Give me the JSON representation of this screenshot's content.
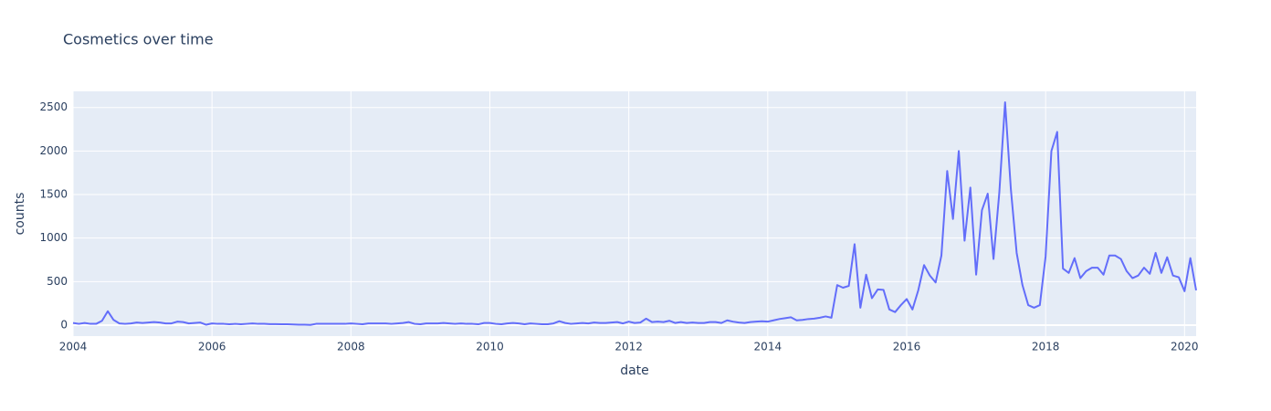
{
  "chart_data": {
    "type": "line",
    "title": "Cosmetics over time",
    "xlabel": "date",
    "ylabel": "counts",
    "x": [
      "2004-01",
      "2004-02",
      "2004-03",
      "2004-04",
      "2004-05",
      "2004-06",
      "2004-07",
      "2004-08",
      "2004-09",
      "2004-10",
      "2004-11",
      "2004-12",
      "2005-01",
      "2005-02",
      "2005-03",
      "2005-04",
      "2005-05",
      "2005-06",
      "2005-07",
      "2005-08",
      "2005-09",
      "2005-10",
      "2005-11",
      "2005-12",
      "2006-01",
      "2006-02",
      "2006-03",
      "2006-04",
      "2006-05",
      "2006-06",
      "2006-07",
      "2006-08",
      "2006-09",
      "2006-10",
      "2006-11",
      "2006-12",
      "2007-01",
      "2007-02",
      "2007-03",
      "2007-04",
      "2007-05",
      "2007-06",
      "2007-07",
      "2007-08",
      "2007-09",
      "2007-10",
      "2007-11",
      "2007-12",
      "2008-01",
      "2008-02",
      "2008-03",
      "2008-04",
      "2008-05",
      "2008-06",
      "2008-07",
      "2008-08",
      "2008-09",
      "2008-10",
      "2008-11",
      "2008-12",
      "2009-01",
      "2009-02",
      "2009-03",
      "2009-04",
      "2009-05",
      "2009-06",
      "2009-07",
      "2009-08",
      "2009-09",
      "2009-10",
      "2009-11",
      "2009-12",
      "2010-01",
      "2010-02",
      "2010-03",
      "2010-04",
      "2010-05",
      "2010-06",
      "2010-07",
      "2010-08",
      "2010-09",
      "2010-10",
      "2010-11",
      "2010-12",
      "2011-01",
      "2011-02",
      "2011-03",
      "2011-04",
      "2011-05",
      "2011-06",
      "2011-07",
      "2011-08",
      "2011-09",
      "2011-10",
      "2011-11",
      "2011-12",
      "2012-01",
      "2012-02",
      "2012-03",
      "2012-04",
      "2012-05",
      "2012-06",
      "2012-07",
      "2012-08",
      "2012-09",
      "2012-10",
      "2012-11",
      "2012-12",
      "2013-01",
      "2013-02",
      "2013-03",
      "2013-04",
      "2013-05",
      "2013-06",
      "2013-07",
      "2013-08",
      "2013-09",
      "2013-10",
      "2013-11",
      "2013-12",
      "2014-01",
      "2014-02",
      "2014-03",
      "2014-04",
      "2014-05",
      "2014-06",
      "2014-07",
      "2014-08",
      "2014-09",
      "2014-10",
      "2014-11",
      "2014-12",
      "2015-01",
      "2015-02",
      "2015-03",
      "2015-04",
      "2015-05",
      "2015-06",
      "2015-07",
      "2015-08",
      "2015-09",
      "2015-10",
      "2015-11",
      "2015-12",
      "2016-01",
      "2016-02",
      "2016-03",
      "2016-04",
      "2016-05",
      "2016-06",
      "2016-07",
      "2016-08",
      "2016-09",
      "2016-10",
      "2016-11",
      "2016-12",
      "2017-01",
      "2017-02",
      "2017-03",
      "2017-04",
      "2017-05",
      "2017-06",
      "2017-07",
      "2017-08",
      "2017-09",
      "2017-10",
      "2017-11",
      "2017-12",
      "2018-01",
      "2018-02",
      "2018-03",
      "2018-04",
      "2018-05",
      "2018-06",
      "2018-07",
      "2018-08",
      "2018-09",
      "2018-10",
      "2018-11",
      "2018-12",
      "2019-01",
      "2019-02",
      "2019-03",
      "2019-04",
      "2019-05",
      "2019-06",
      "2019-07",
      "2019-08",
      "2019-09",
      "2019-10",
      "2019-11",
      "2019-12",
      "2020-01",
      "2020-02",
      "2020-03"
    ],
    "values": [
      25,
      15,
      25,
      15,
      15,
      50,
      160,
      60,
      20,
      15,
      20,
      30,
      25,
      30,
      35,
      30,
      20,
      20,
      40,
      35,
      20,
      25,
      30,
      5,
      20,
      15,
      15,
      10,
      15,
      10,
      15,
      20,
      15,
      15,
      12,
      12,
      10,
      10,
      8,
      5,
      5,
      3,
      15,
      15,
      15,
      15,
      15,
      15,
      20,
      15,
      10,
      20,
      20,
      20,
      20,
      15,
      20,
      25,
      35,
      15,
      10,
      20,
      20,
      20,
      25,
      20,
      15,
      20,
      15,
      15,
      10,
      25,
      25,
      15,
      10,
      20,
      25,
      20,
      10,
      20,
      15,
      10,
      10,
      20,
      45,
      25,
      15,
      20,
      25,
      20,
      30,
      25,
      25,
      30,
      35,
      20,
      40,
      25,
      30,
      75,
      35,
      40,
      35,
      50,
      25,
      35,
      25,
      30,
      25,
      25,
      35,
      35,
      25,
      55,
      40,
      30,
      25,
      35,
      40,
      45,
      40,
      55,
      70,
      80,
      90,
      55,
      60,
      70,
      75,
      85,
      100,
      85,
      460,
      430,
      450,
      930,
      200,
      580,
      310,
      410,
      405,
      180,
      150,
      230,
      300,
      180,
      400,
      690,
      570,
      490,
      800,
      1770,
      1220,
      2000,
      970,
      1580,
      580,
      1320,
      1510,
      760,
      1520,
      2560,
      1560,
      830,
      460,
      230,
      200,
      230,
      790,
      2000,
      2220,
      650,
      600,
      770,
      540,
      620,
      660,
      660,
      580,
      800,
      800,
      760,
      620,
      540,
      570,
      660,
      590,
      830,
      600,
      780,
      570,
      550,
      390,
      770,
      400
    ],
    "color": "#636efa",
    "xlim": [
      "2004-01",
      "2020-03"
    ],
    "xticks": [
      "2004",
      "2006",
      "2008",
      "2010",
      "2012",
      "2014",
      "2016",
      "2018",
      "2020"
    ],
    "ylim": [
      -126,
      2686
    ],
    "yticks": [
      0,
      500,
      1000,
      1500,
      2000,
      2500
    ],
    "grid": true
  }
}
